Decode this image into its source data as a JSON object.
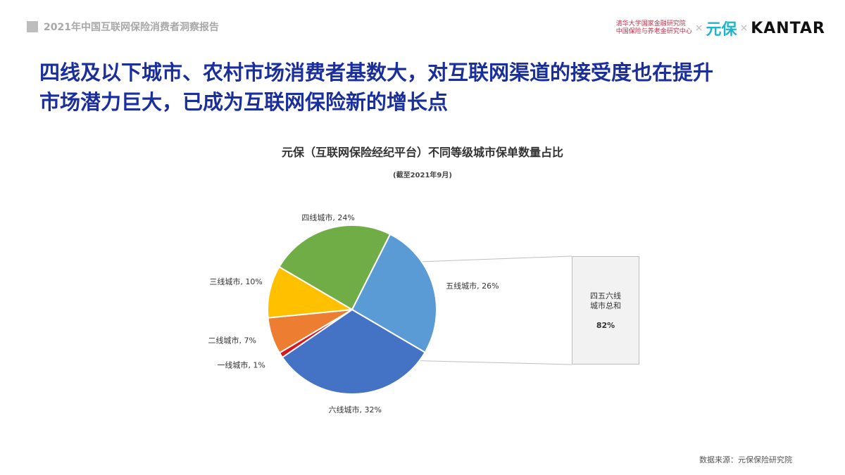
{
  "header": {
    "report_title": "2021年中国互联网保险消费者洞察报告"
  },
  "logos": {
    "tsinghua_line1": "清华大学国家金融研究院",
    "tsinghua_line2": "中国保险与养老金研究中心",
    "separator": "×",
    "yuanbao": "元保",
    "kantar": "KANTAR"
  },
  "headline": {
    "line1": "四线及以下城市、农村市场消费者基数大，对互联网渠道的接受度也在提升",
    "line2": "市场潜力巨大，已成为互联网保险新的增长点"
  },
  "chart_data": {
    "type": "pie",
    "title": "元保（互联网保险经纪平台）不同等级城市保单数量占比",
    "subtitle": "(截至2021年9月)",
    "slices": [
      {
        "label": "四线城市, 24%",
        "name": "四线城市",
        "value": 24,
        "color": "#70ad47"
      },
      {
        "label": "五线城市, 26%",
        "name": "五线城市",
        "value": 26,
        "color": "#5b9bd5"
      },
      {
        "label": "六线城市, 32%",
        "name": "六线城市",
        "value": 32,
        "color": "#4472c4"
      },
      {
        "label": "一线城市, 1%",
        "name": "一线城市",
        "value": 1,
        "color": "#d9161c"
      },
      {
        "label": "二线城市, 7%",
        "name": "二线城市",
        "value": 7,
        "color": "#ed7d31"
      },
      {
        "label": "三线城市, 10%",
        "name": "三线城市",
        "value": 10,
        "color": "#ffc000"
      }
    ],
    "summary": {
      "label_line1": "四五六线",
      "label_line2": "城市总和",
      "value": "82%"
    }
  },
  "footer": {
    "source": "数据来源：元保保险研究院"
  }
}
